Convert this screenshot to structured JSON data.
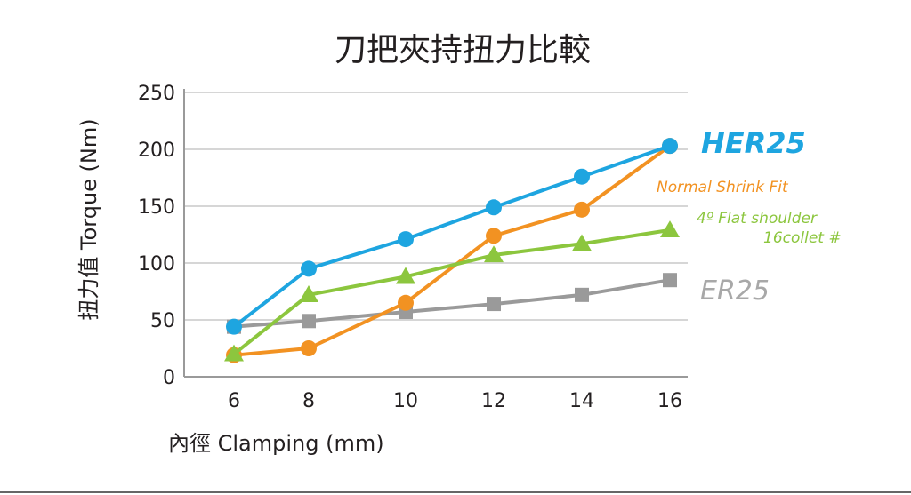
{
  "chart_data": {
    "type": "line",
    "title": "刀把夾持扭力比較",
    "xlabel": "內徑 Clamping (mm)",
    "ylabel": "扭力值 Torque (Nm)",
    "x": [
      6,
      8,
      10,
      12,
      14,
      16
    ],
    "x_tick_labels": [
      "6",
      "8",
      "10",
      "12",
      "14",
      "16"
    ],
    "ylim": [
      0,
      250
    ],
    "y_ticks": [
      0,
      50,
      100,
      150,
      200,
      250
    ],
    "y_tick_labels": [
      "0",
      "50",
      "100",
      "150",
      "200",
      "250"
    ],
    "grid": "horizontal",
    "legend": "inline at right end of each line",
    "series": [
      {
        "name": "HER25",
        "color": "#1ea5e0",
        "marker": "circle",
        "values": [
          44,
          95,
          121,
          149,
          176,
          203
        ]
      },
      {
        "name": "Normal Shrink Fit",
        "color": "#f29222",
        "marker": "circle",
        "values": [
          19,
          25,
          65,
          124,
          147,
          203
        ]
      },
      {
        "name": "4º Flat shoulder 16collet #",
        "label_lines": [
          "4º Flat shoulder",
          "16collet #"
        ],
        "color": "#8cc63e",
        "marker": "triangle",
        "values": [
          20,
          72,
          88,
          107,
          117,
          129
        ]
      },
      {
        "name": "ER25",
        "color": "#9a9a9a",
        "marker": "square",
        "values": [
          44,
          49,
          57,
          64,
          72,
          85
        ]
      }
    ]
  }
}
